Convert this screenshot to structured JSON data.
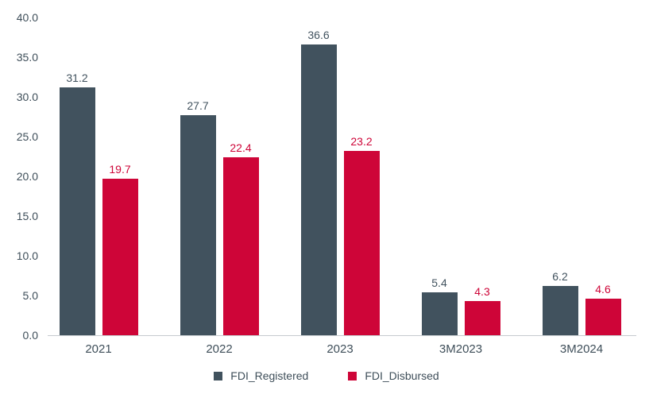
{
  "chart_data": {
    "type": "bar",
    "title": "",
    "xlabel": "",
    "ylabel": "",
    "categories": [
      "2021",
      "2022",
      "2023",
      "3M2023",
      "3M2024"
    ],
    "series": [
      {
        "name": "FDI_Registered",
        "color": "#41525E",
        "values": [
          31.2,
          27.7,
          36.6,
          5.4,
          6.2
        ]
      },
      {
        "name": "FDI_Disbursed",
        "color": "#CE0538",
        "values": [
          19.7,
          22.4,
          23.2,
          4.3,
          4.6
        ]
      }
    ],
    "value_labels": [
      "31.2",
      "19.7",
      "27.7",
      "22.4",
      "36.6",
      "23.2",
      "5.4",
      "4.3",
      "6.2",
      "4.6"
    ],
    "ylim": [
      0,
      40
    ],
    "ytick_step": 5,
    "ytick_labels": [
      "0.0",
      "5.0",
      "10.0",
      "15.0",
      "20.0",
      "25.0",
      "30.0",
      "35.0",
      "40.0"
    ],
    "grid": false,
    "legend_position": "bottom"
  },
  "colors": {
    "background": "#FFFFFF",
    "axis_line": "#C6CBCE",
    "tick_text": "#3E4E59",
    "registered": "#41525E",
    "disbursed": "#CE0538"
  }
}
